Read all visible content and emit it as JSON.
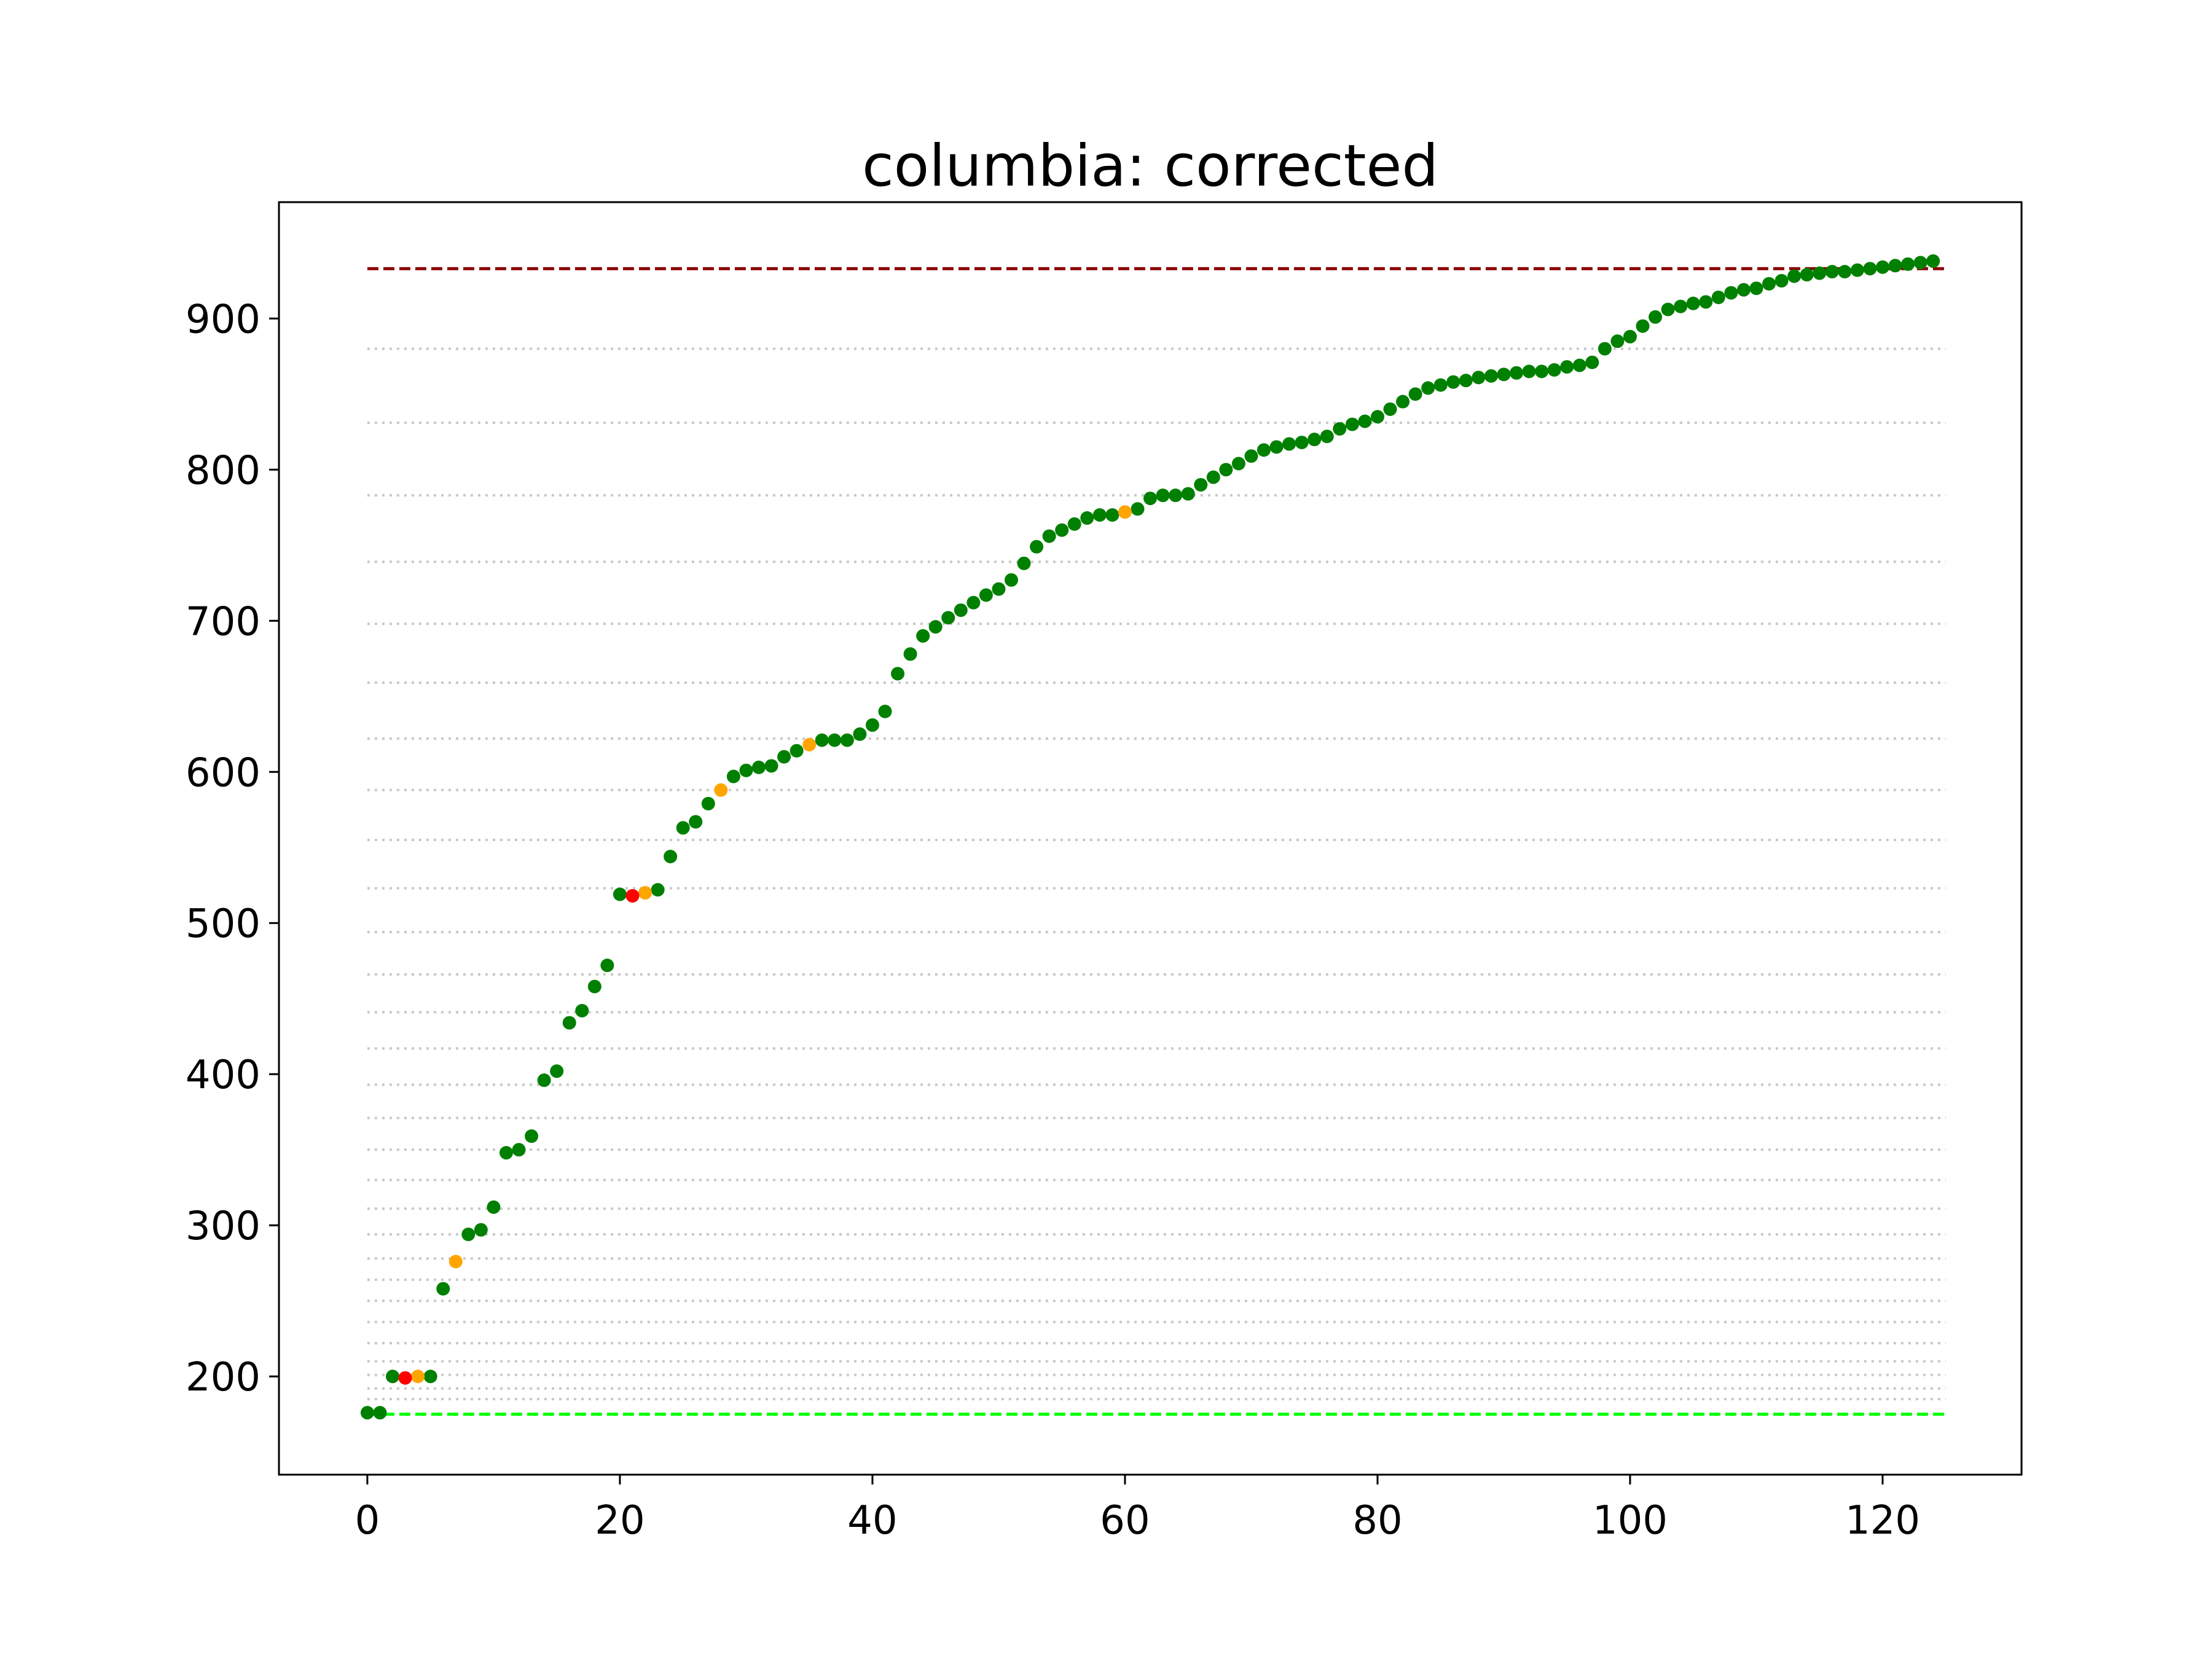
{
  "chart_data": {
    "type": "scatter",
    "title": "columbia: corrected",
    "xlabel": "",
    "ylabel": "",
    "xlim": [
      -7,
      131
    ],
    "ylim": [
      135,
      977
    ],
    "xticks": [
      0,
      20,
      40,
      60,
      80,
      100,
      120
    ],
    "yticks": [
      200,
      300,
      400,
      500,
      600,
      700,
      800,
      900
    ],
    "grid": false,
    "reference_lines": [
      {
        "y": 933,
        "color": "#8b0000",
        "style": "dashed"
      },
      {
        "y": 175,
        "color": "#00ff00",
        "style": "dashed"
      }
    ],
    "guide_lines": {
      "color": "#c8c8c8",
      "style": "dotted",
      "y": [
        185,
        192,
        201,
        210,
        222,
        236,
        250,
        264,
        278,
        294,
        311,
        330,
        350,
        371,
        393,
        417,
        441,
        466,
        494,
        523,
        555,
        588,
        622,
        659,
        698,
        739,
        783,
        831,
        880
      ]
    },
    "series": [
      {
        "color": "#008000",
        "points": [
          [
            0,
            176
          ],
          [
            1,
            176
          ],
          [
            2,
            200
          ],
          [
            5,
            200
          ],
          [
            6,
            258
          ],
          [
            8,
            294
          ],
          [
            9,
            297
          ],
          [
            10,
            312
          ],
          [
            11,
            348
          ],
          [
            12,
            350
          ],
          [
            13,
            359
          ],
          [
            14,
            396
          ],
          [
            15,
            402
          ],
          [
            16,
            434
          ],
          [
            17,
            442
          ],
          [
            18,
            458
          ],
          [
            19,
            472
          ],
          [
            20,
            519
          ],
          [
            23,
            522
          ],
          [
            24,
            544
          ],
          [
            25,
            563
          ],
          [
            26,
            567
          ],
          [
            27,
            579
          ],
          [
            29,
            597
          ],
          [
            30,
            601
          ],
          [
            31,
            603
          ],
          [
            32,
            604
          ],
          [
            33,
            610
          ],
          [
            34,
            614
          ],
          [
            36,
            621
          ],
          [
            37,
            621
          ],
          [
            38,
            621
          ],
          [
            39,
            625
          ],
          [
            40,
            631
          ],
          [
            41,
            640
          ],
          [
            42,
            665
          ],
          [
            43,
            678
          ],
          [
            44,
            690
          ],
          [
            45,
            696
          ],
          [
            46,
            702
          ],
          [
            47,
            707
          ],
          [
            48,
            712
          ],
          [
            49,
            717
          ],
          [
            50,
            721
          ],
          [
            51,
            727
          ],
          [
            52,
            738
          ],
          [
            53,
            749
          ],
          [
            54,
            756
          ],
          [
            55,
            760
          ],
          [
            56,
            764
          ],
          [
            57,
            768
          ],
          [
            58,
            770
          ],
          [
            59,
            770
          ],
          [
            61,
            774
          ],
          [
            62,
            781
          ],
          [
            63,
            783
          ],
          [
            64,
            783
          ],
          [
            65,
            784
          ],
          [
            66,
            790
          ],
          [
            67,
            795
          ],
          [
            68,
            800
          ],
          [
            69,
            804
          ],
          [
            70,
            809
          ],
          [
            71,
            813
          ],
          [
            72,
            815
          ],
          [
            73,
            817
          ],
          [
            74,
            818
          ],
          [
            75,
            820
          ],
          [
            76,
            822
          ],
          [
            77,
            827
          ],
          [
            78,
            830
          ],
          [
            79,
            832
          ],
          [
            80,
            835
          ],
          [
            81,
            840
          ],
          [
            82,
            845
          ],
          [
            83,
            850
          ],
          [
            84,
            854
          ],
          [
            85,
            856
          ],
          [
            86,
            858
          ],
          [
            87,
            859
          ],
          [
            88,
            861
          ],
          [
            89,
            862
          ],
          [
            90,
            863
          ],
          [
            91,
            864
          ],
          [
            92,
            865
          ],
          [
            93,
            865
          ],
          [
            94,
            866
          ],
          [
            95,
            868
          ],
          [
            96,
            869
          ],
          [
            97,
            871
          ],
          [
            98,
            880
          ],
          [
            99,
            885
          ],
          [
            100,
            888
          ],
          [
            101,
            895
          ],
          [
            102,
            901
          ],
          [
            103,
            906
          ],
          [
            104,
            908
          ],
          [
            105,
            910
          ],
          [
            106,
            911
          ],
          [
            107,
            914
          ],
          [
            108,
            917
          ],
          [
            109,
            919
          ],
          [
            110,
            920
          ],
          [
            111,
            923
          ],
          [
            112,
            925
          ],
          [
            113,
            928
          ],
          [
            114,
            929
          ],
          [
            115,
            930
          ],
          [
            116,
            931
          ],
          [
            117,
            931
          ],
          [
            118,
            932
          ],
          [
            119,
            933
          ],
          [
            120,
            934
          ],
          [
            121,
            935
          ],
          [
            122,
            936
          ],
          [
            123,
            937
          ],
          [
            124,
            938
          ]
        ]
      },
      {
        "color": "#ffa500",
        "points": [
          [
            4,
            200
          ],
          [
            7,
            276
          ],
          [
            22,
            520
          ],
          [
            28,
            588
          ],
          [
            35,
            618
          ],
          [
            60,
            772
          ]
        ]
      },
      {
        "color": "#ff0000",
        "points": [
          [
            3,
            199
          ],
          [
            21,
            518
          ]
        ]
      }
    ]
  }
}
